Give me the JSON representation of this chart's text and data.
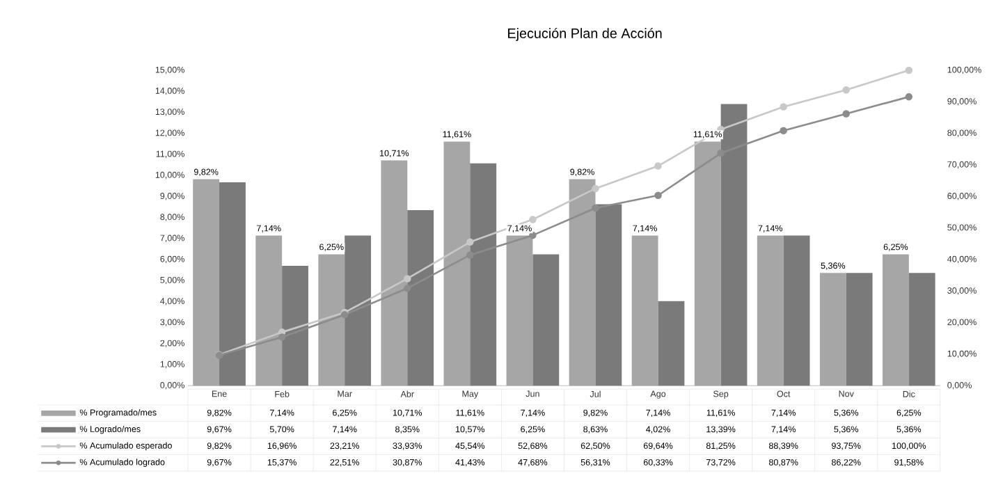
{
  "chart_data": {
    "type": "bar",
    "title": "Ejecución Plan de Acción",
    "categories": [
      "Ene",
      "Feb",
      "Mar",
      "Abr",
      "May",
      "Jun",
      "Jul",
      "Ago",
      "Sep",
      "Oct",
      "Nov",
      "Dic"
    ],
    "series": [
      {
        "name": "% Programado/mes",
        "color": "#a6a6a6",
        "values": [
          9.82,
          7.14,
          6.25,
          10.71,
          11.61,
          7.14,
          9.82,
          7.14,
          11.61,
          7.14,
          5.36,
          6.25
        ],
        "value_labels": [
          "9,82%",
          "7,14%",
          "6,25%",
          "10,71%",
          "11,61%",
          "7,14%",
          "9,82%",
          "7,14%",
          "11,61%",
          "7,14%",
          "5,36%",
          "6,25%"
        ]
      },
      {
        "name": "% Logrado/mes",
        "color": "#7a7a7a",
        "values": [
          9.67,
          5.7,
          7.14,
          8.35,
          10.57,
          6.25,
          8.63,
          4.02,
          13.39,
          7.14,
          5.36,
          5.36
        ],
        "value_labels": [
          "9,67%",
          "5,70%",
          "7,14%",
          "8,35%",
          "10,57%",
          "6,25%",
          "8,63%",
          "4,02%",
          "13,39%",
          "7,14%",
          "5,36%",
          "5,36%"
        ]
      },
      {
        "name": "% Acumulado esperado",
        "type": "line",
        "axis": "y2",
        "color": "#c8c8c8",
        "values": [
          9.82,
          16.96,
          23.21,
          33.93,
          45.54,
          52.68,
          62.5,
          69.64,
          81.25,
          88.39,
          93.75,
          100.0
        ],
        "value_labels": [
          "9,82%",
          "16,96%",
          "23,21%",
          "33,93%",
          "45,54%",
          "52,68%",
          "62,50%",
          "69,64%",
          "81,25%",
          "88,39%",
          "93,75%",
          "100,00%"
        ]
      },
      {
        "name": "% Acumulado logrado",
        "type": "line",
        "axis": "y2",
        "color": "#8c8c8c",
        "values": [
          9.67,
          15.37,
          22.51,
          30.87,
          41.43,
          47.68,
          56.31,
          60.33,
          73.72,
          80.87,
          86.22,
          91.58
        ],
        "value_labels": [
          "9,67%",
          "15,37%",
          "22,51%",
          "30,87%",
          "41,43%",
          "47,68%",
          "56,31%",
          "60,33%",
          "73,72%",
          "80,87%",
          "86,22%",
          "91,58%"
        ]
      }
    ],
    "ylim": [
      0,
      15
    ],
    "yticks": [
      {
        "value": 0,
        "label": "0,00%"
      },
      {
        "value": 1,
        "label": "1,00%"
      },
      {
        "value": 2,
        "label": "2,00%"
      },
      {
        "value": 3,
        "label": "3,00%"
      },
      {
        "value": 4,
        "label": "4,00%"
      },
      {
        "value": 5,
        "label": "5,00%"
      },
      {
        "value": 6,
        "label": "6,00%"
      },
      {
        "value": 7,
        "label": "7,00%"
      },
      {
        "value": 8,
        "label": "8,00%"
      },
      {
        "value": 9,
        "label": "9,00%"
      },
      {
        "value": 10,
        "label": "10,00%"
      },
      {
        "value": 11,
        "label": "11,00%"
      },
      {
        "value": 12,
        "label": "12,00%"
      },
      {
        "value": 13,
        "label": "13,00%"
      },
      {
        "value": 14,
        "label": "14,00%"
      },
      {
        "value": 15,
        "label": "15,00%"
      }
    ],
    "y2lim": [
      0,
      100
    ],
    "y2ticks": [
      {
        "value": 0,
        "label": "0,00%"
      },
      {
        "value": 10,
        "label": "10,00%"
      },
      {
        "value": 20,
        "label": "20,00%"
      },
      {
        "value": 30,
        "label": "30,00%"
      },
      {
        "value": 40,
        "label": "40,00%"
      },
      {
        "value": 50,
        "label": "50,00%"
      },
      {
        "value": 60,
        "label": "60,00%"
      },
      {
        "value": 70,
        "label": "70,00%"
      },
      {
        "value": 80,
        "label": "80,00%"
      },
      {
        "value": 90,
        "label": "90,00%"
      },
      {
        "value": 100,
        "label": "100,00%"
      }
    ],
    "legend": "bottom",
    "marker": "circle",
    "line_style": "solid",
    "grid": false
  }
}
